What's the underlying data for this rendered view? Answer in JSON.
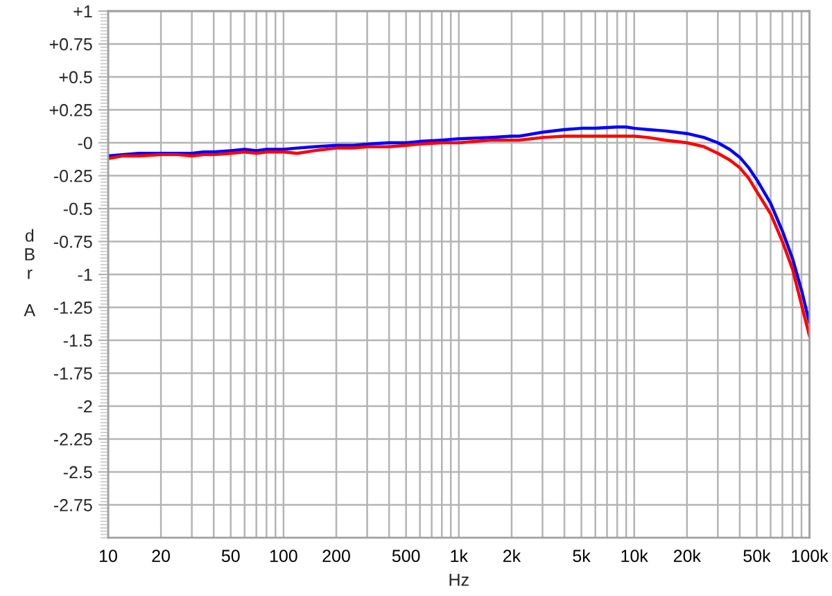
{
  "chart_data": {
    "type": "line",
    "xlabel": "Hz",
    "ylabel": "dBr A",
    "log": "x",
    "grid": true,
    "xlim": [
      10,
      100000
    ],
    "ylim": [
      -3,
      1
    ],
    "xticks": [
      10,
      20,
      50,
      100,
      200,
      500,
      {
        "value": 1000,
        "label": "1k"
      },
      {
        "value": 2000,
        "label": "2k"
      },
      {
        "value": 5000,
        "label": "5k"
      },
      {
        "value": 10000,
        "label": "10k"
      },
      {
        "value": 20000,
        "label": "20k"
      },
      {
        "value": 50000,
        "label": "50k"
      },
      {
        "value": 100000,
        "label": "100k"
      }
    ],
    "yticks": [
      {
        "value": 1,
        "label": "+1"
      },
      {
        "value": 0.75,
        "label": "+0.75"
      },
      {
        "value": 0.5,
        "label": "+0.5"
      },
      {
        "value": 0.25,
        "label": "+0.25"
      },
      {
        "value": 0,
        "label": "-0"
      },
      -0.25,
      -0.5,
      -0.75,
      -1,
      -1.25,
      -1.5,
      -1.75,
      -2,
      -2.25,
      -2.5,
      -2.75
    ],
    "x": [
      10,
      12,
      15,
      20,
      25,
      30,
      35,
      40,
      50,
      60,
      70,
      80,
      90,
      100,
      120,
      150,
      200,
      250,
      300,
      400,
      500,
      600,
      800,
      1000,
      1500,
      2000,
      2200,
      3000,
      4000,
      5000,
      6000,
      8000,
      9000,
      10000,
      12000,
      15000,
      20000,
      25000,
      30000,
      35000,
      40000,
      45000,
      50000,
      60000,
      70000,
      80000,
      90000,
      100000
    ],
    "series": [
      {
        "color": "#0000ff",
        "values": [
          -0.1,
          -0.09,
          -0.08,
          -0.08,
          -0.08,
          -0.08,
          -0.07,
          -0.07,
          -0.06,
          -0.05,
          -0.06,
          -0.05,
          -0.05,
          -0.05,
          -0.04,
          -0.03,
          -0.02,
          -0.02,
          -0.01,
          0.0,
          0.0,
          0.01,
          0.02,
          0.03,
          0.04,
          0.05,
          0.05,
          0.08,
          0.1,
          0.11,
          0.11,
          0.12,
          0.12,
          0.11,
          0.1,
          0.09,
          0.07,
          0.04,
          0.0,
          -0.05,
          -0.11,
          -0.19,
          -0.28,
          -0.46,
          -0.67,
          -0.88,
          -1.12,
          -1.37
        ]
      },
      {
        "color": "#ff0000",
        "values": [
          -0.12,
          -0.1,
          -0.1,
          -0.09,
          -0.09,
          -0.1,
          -0.09,
          -0.09,
          -0.08,
          -0.07,
          -0.08,
          -0.07,
          -0.07,
          -0.07,
          -0.08,
          -0.06,
          -0.04,
          -0.04,
          -0.03,
          -0.03,
          -0.02,
          -0.01,
          0.0,
          0.0,
          0.02,
          0.02,
          0.02,
          0.04,
          0.05,
          0.05,
          0.05,
          0.05,
          0.05,
          0.05,
          0.04,
          0.02,
          0.0,
          -0.03,
          -0.08,
          -0.13,
          -0.19,
          -0.27,
          -0.37,
          -0.54,
          -0.75,
          -0.96,
          -1.23,
          -1.47
        ]
      }
    ]
  }
}
